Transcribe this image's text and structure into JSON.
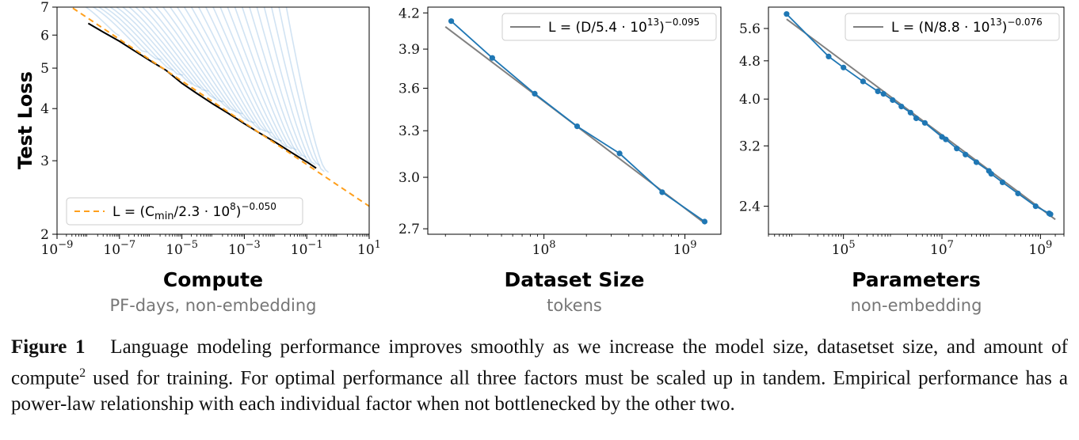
{
  "chart_data": [
    {
      "type": "line",
      "ylabel": "Test Loss",
      "xlabel": "Compute",
      "xsublabel": "PF-days, non-embedding",
      "xscale": "log",
      "yscale": "log",
      "xlim": [
        1e-09,
        10
      ],
      "ylim": [
        2,
        7
      ],
      "xticks": [
        {
          "value": 1e-09,
          "base": "10",
          "exp": "−9"
        },
        {
          "value": 1e-07,
          "base": "10",
          "exp": "−7"
        },
        {
          "value": 1e-05,
          "base": "10",
          "exp": "−5"
        },
        {
          "value": 0.001,
          "base": "10",
          "exp": "−3"
        },
        {
          "value": 0.1,
          "base": "10",
          "exp": "−1"
        },
        {
          "value": 10,
          "base": "10",
          "exp": "1"
        }
      ],
      "yticks": [
        {
          "value": 2,
          "label": "2"
        },
        {
          "value": 3,
          "label": "3"
        },
        {
          "value": 4,
          "label": "4"
        },
        {
          "value": 5,
          "label": "5"
        },
        {
          "value": 6,
          "label": "6"
        },
        {
          "value": 7,
          "label": "7"
        }
      ],
      "legend": {
        "position": "lower-left",
        "lhs": "L = (C",
        "sub": "min",
        "mid": "/2.3 · 10",
        "sup1": "8",
        "rhs": ")",
        "sup2": "−0.050",
        "color": "#ff9f1c",
        "dashed": true
      },
      "fit": {
        "scale": 230000000.0,
        "exponent": -0.05,
        "xrange": [
          1e-09,
          10
        ]
      },
      "frontier": {
        "color": "#000000",
        "x": [
          1e-08,
          3e-08,
          1e-07,
          3e-07,
          1e-06,
          3e-06,
          1e-05,
          3e-05,
          0.0001,
          0.0003,
          0.001,
          0.003,
          0.01,
          0.03,
          0.1,
          0.2
        ],
        "y": [
          6.4,
          6.1,
          5.8,
          5.5,
          5.2,
          4.95,
          4.6,
          4.35,
          4.1,
          3.9,
          3.68,
          3.5,
          3.32,
          3.15,
          2.98,
          2.88
        ]
      },
      "curves": {
        "color": "#5b9bd5",
        "count": 30,
        "start_range": [
          2e-09,
          0.02
        ],
        "end_range": [
          1e-07,
          0.5
        ],
        "start_loss": 7.3
      }
    },
    {
      "type": "line",
      "xlabel": "Dataset Size",
      "xsublabel": "tokens",
      "xscale": "log",
      "yscale": "log",
      "xlim": [
        15000000.0,
        1800000000.0
      ],
      "ylim": [
        2.67,
        4.25
      ],
      "xticks": [
        {
          "value": 100000000.0,
          "base": "10",
          "exp": "8"
        },
        {
          "value": 1000000000.0,
          "base": "10",
          "exp": "9"
        }
      ],
      "yticks": [
        {
          "value": 2.7,
          "label": "2.7"
        },
        {
          "value": 3.0,
          "label": "3.0"
        },
        {
          "value": 3.3,
          "label": "3.3"
        },
        {
          "value": 3.6,
          "label": "3.6"
        },
        {
          "value": 3.9,
          "label": "3.9"
        },
        {
          "value": 4.2,
          "label": "4.2"
        }
      ],
      "legend": {
        "position": "top-right",
        "lhs": "L = (D/5.4 · 10",
        "sup1": "13",
        "rhs": ")",
        "sup2": "−0.095",
        "color": "#808080"
      },
      "fit": {
        "scale": 54000000000000.0,
        "exponent": -0.095,
        "xrange": [
          20000000.0,
          1400000000.0
        ]
      },
      "series": [
        {
          "color": "#1f77b4",
          "x": [
            22000000.0,
            43000000.0,
            86000000.0,
            172000000.0,
            344000000.0,
            690000000.0,
            1380000000.0
          ],
          "y": [
            4.13,
            3.83,
            3.56,
            3.33,
            3.15,
            2.91,
            2.74
          ]
        }
      ]
    },
    {
      "type": "line",
      "xlabel": "Parameters",
      "xsublabel": "non-embedding",
      "xscale": "log",
      "yscale": "log",
      "xlim": [
        3000.0,
        3000000000.0
      ],
      "ylim": [
        2.1,
        6.2
      ],
      "xticks": [
        {
          "value": 100000.0,
          "base": "10",
          "exp": "5"
        },
        {
          "value": 10000000.0,
          "base": "10",
          "exp": "7"
        },
        {
          "value": 1000000000.0,
          "base": "10",
          "exp": "9"
        }
      ],
      "yticks": [
        {
          "value": 2.4,
          "label": "2.4"
        },
        {
          "value": 3.2,
          "label": "3.2"
        },
        {
          "value": 4.0,
          "label": "4.0"
        },
        {
          "value": 4.8,
          "label": "4.8"
        },
        {
          "value": 5.6,
          "label": "5.6"
        }
      ],
      "legend": {
        "position": "top-right",
        "lhs": "L = (N/8.8 · 10",
        "sup1": "13",
        "rhs": ")",
        "sup2": "−0.076",
        "color": "#808080"
      },
      "fit": {
        "scale": 88000000000000.0,
        "exponent": -0.076,
        "xrange": [
          7000.0,
          2000000000.0
        ]
      },
      "series": [
        {
          "color": "#1f77b4",
          "x": [
            7000.0,
            50000.0,
            100000.0,
            250000.0,
            500000.0,
            650000.0,
            1000000.0,
            1500000.0,
            2300000.0,
            3000000.0,
            4500000.0,
            10000000.0,
            12000000.0,
            20000000.0,
            30000000.0,
            50000000.0,
            90000000.0,
            100000000.0,
            170000000.0,
            350000000.0,
            800000000.0,
            1500000000.0,
            1600000000.0
          ],
          "y": [
            6.0,
            4.9,
            4.65,
            4.35,
            4.15,
            4.1,
            3.98,
            3.86,
            3.75,
            3.65,
            3.57,
            3.34,
            3.3,
            3.16,
            3.07,
            2.96,
            2.84,
            2.8,
            2.69,
            2.55,
            2.4,
            2.32,
            2.31
          ]
        }
      ]
    }
  ],
  "caption": {
    "label": "Figure 1",
    "text_a": "Language modeling performance improves smoothly as we increase the model size, datasetset size, and amount of compute",
    "footnote": "2",
    "text_b": " used for training. For optimal performance all three factors must be scaled up in tandem. Empirical performance has a power-law relationship with each individual factor when not bottlenecked by the other two."
  }
}
